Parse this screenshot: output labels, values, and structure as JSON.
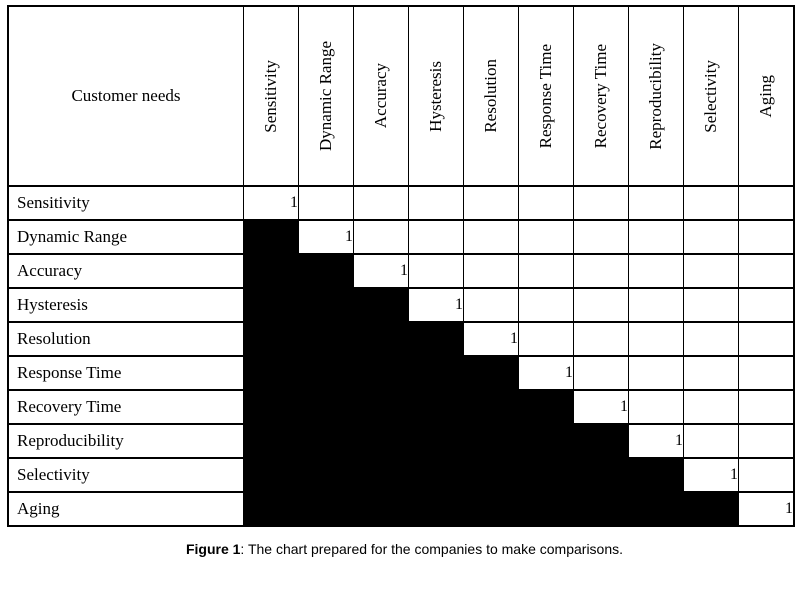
{
  "table": {
    "corner_label": "Customer needs",
    "columns": [
      "Sensitivity",
      "Dynamic Range",
      "Accuracy",
      "Hysteresis",
      "Resolution",
      "Response Time",
      "Recovery Time",
      "Reproducibility",
      "Selectivity",
      "Aging"
    ],
    "cell_legend": {
      "1": "diagonal comparison value",
      "B": "black filled cell",
      "": "empty cell"
    },
    "rows": [
      {
        "label": "Sensitivity",
        "cells": [
          "1",
          "",
          "",
          "",
          "",
          "",
          "",
          "",
          "",
          ""
        ]
      },
      {
        "label": "Dynamic Range",
        "cells": [
          "B",
          "1",
          "",
          "",
          "",
          "",
          "",
          "",
          "",
          ""
        ]
      },
      {
        "label": "Accuracy",
        "cells": [
          "B",
          "B",
          "1",
          "",
          "",
          "",
          "",
          "",
          "",
          ""
        ]
      },
      {
        "label": "Hysteresis",
        "cells": [
          "B",
          "B",
          "B",
          "1",
          "",
          "",
          "",
          "",
          "",
          ""
        ]
      },
      {
        "label": "Resolution",
        "cells": [
          "B",
          "B",
          "B",
          "B",
          "1",
          "",
          "",
          "",
          "",
          ""
        ]
      },
      {
        "label": "Response Time",
        "cells": [
          "B",
          "B",
          "B",
          "B",
          "B",
          "1",
          "",
          "",
          "",
          ""
        ]
      },
      {
        "label": "Recovery Time",
        "cells": [
          "B",
          "B",
          "B",
          "B",
          "B",
          "B",
          "1",
          "",
          "",
          ""
        ]
      },
      {
        "label": "Reproducibility",
        "cells": [
          "B",
          "B",
          "B",
          "B",
          "B",
          "B",
          "B",
          "1",
          "",
          ""
        ]
      },
      {
        "label": "Selectivity",
        "cells": [
          "B",
          "B",
          "B",
          "B",
          "B",
          "B",
          "B",
          "B",
          "1",
          ""
        ]
      },
      {
        "label": "Aging",
        "cells": [
          "B",
          "B",
          "B",
          "B",
          "B",
          "B",
          "B",
          "B",
          "B",
          "1"
        ]
      }
    ]
  },
  "caption": {
    "prefix": "Figure 1",
    "text": ": The chart prepared for the companies to make comparisons."
  },
  "colors": {
    "fill_black": "#000000",
    "border": "#000000",
    "background": "#ffffff"
  }
}
